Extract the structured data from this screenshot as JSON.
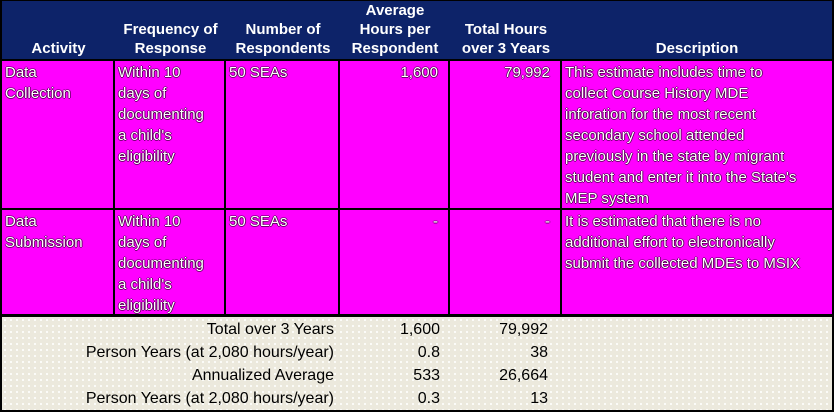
{
  "colors": {
    "header_bg": "#0D2369",
    "header_text": "#FFFFFF",
    "row_bg": "#FF00FF",
    "row_text": "#FFFFFF",
    "footer_bg": "#ECE9DD",
    "footer_text": "#000000",
    "border": "#000000"
  },
  "header": {
    "columns": [
      "Activity",
      "Frequency of\nResponse",
      "Number of\nRespondents",
      "Average\nHours per\nRespondent",
      "Total Hours\nover 3 Years",
      "Description"
    ]
  },
  "rows": [
    {
      "activity": "Data\nCollection",
      "frequency": "Within 10\ndays of\ndocumenting\na child's\neligibility",
      "respondents": "50 SEAs",
      "avg_hours": "1,600",
      "total_hours": "79,992",
      "description": "This estimate includes time to\ncollect Course History MDE\ninforation for the most recent\nsecondary school attended\npreviously in the state by migrant\nstudent and enter it into the State's\nMEP system"
    },
    {
      "activity": "Data\nSubmission",
      "frequency": "Within 10\ndays of\ndocumenting\na child's\neligibility",
      "respondents": "50 SEAs",
      "avg_hours": "-",
      "total_hours": "-",
      "description": "It is estimated that there is no\nadditional effort to electronically\nsubmit the collected MDEs  to MSIX"
    }
  ],
  "footer": {
    "rows": [
      {
        "label": "Total over 3 Years",
        "avg_hours": "1,600",
        "total_hours": "79,992"
      },
      {
        "label": "Person Years (at 2,080 hours/year)",
        "avg_hours": "0.8",
        "total_hours": "38"
      },
      {
        "label": "Annualized Average",
        "avg_hours": "533",
        "total_hours": "26,664"
      },
      {
        "label": "Person Years (at 2,080 hours/year)",
        "avg_hours": "0.3",
        "total_hours": "13"
      }
    ]
  }
}
